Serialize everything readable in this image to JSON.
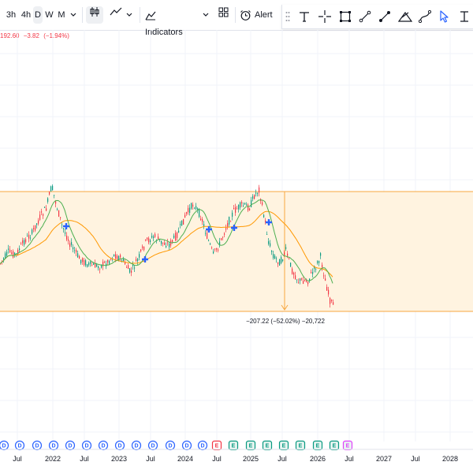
{
  "toolbar": {
    "intervals": [
      "3h",
      "4h",
      "D",
      "W",
      "M"
    ],
    "selected_interval": "D",
    "indicators_label": "Indicators",
    "alert_label": "Alert"
  },
  "price_info": {
    "close": "192.60",
    "change": "−3.82",
    "change_pct": "(−1.94%)",
    "change_color": "#f23645"
  },
  "measure": {
    "label": "−207.22 (−52.02%) −20,722",
    "fill_color": "#fff3e0",
    "border_color": "#f7a740"
  },
  "time_axis": {
    "labels": [
      "Jul",
      "2022",
      "Jul",
      "2023",
      "Jul",
      "2024",
      "Jul",
      "2025",
      "Jul",
      "2026",
      "Jul",
      "2027",
      "Jul",
      "2028"
    ]
  },
  "events": {
    "markers": [
      "D",
      "D",
      "D",
      "D",
      "D",
      "D",
      "D",
      "D",
      "D",
      "D",
      "D",
      "D",
      "D",
      "E",
      "E",
      "E",
      "E",
      "E",
      "E",
      "E",
      "E",
      "E"
    ],
    "dividend_color": "#2962ff",
    "earnings_past_color": "#f23645",
    "earnings_color": "#089981",
    "earnings_future_color": "#e040fb"
  },
  "colors": {
    "up": "#089981",
    "down": "#f23645",
    "ma_fast": "#4caf50",
    "ma_slow": "#ff9800",
    "marker": "#2962ff",
    "grid": "#f0f3fa"
  },
  "icons": {
    "bar_style": "candles-icon",
    "line_style": "line-chart-icon",
    "indicators": "indicators-icon",
    "layout": "layout-grid-icon",
    "alert": "alarm-clock-icon"
  }
}
